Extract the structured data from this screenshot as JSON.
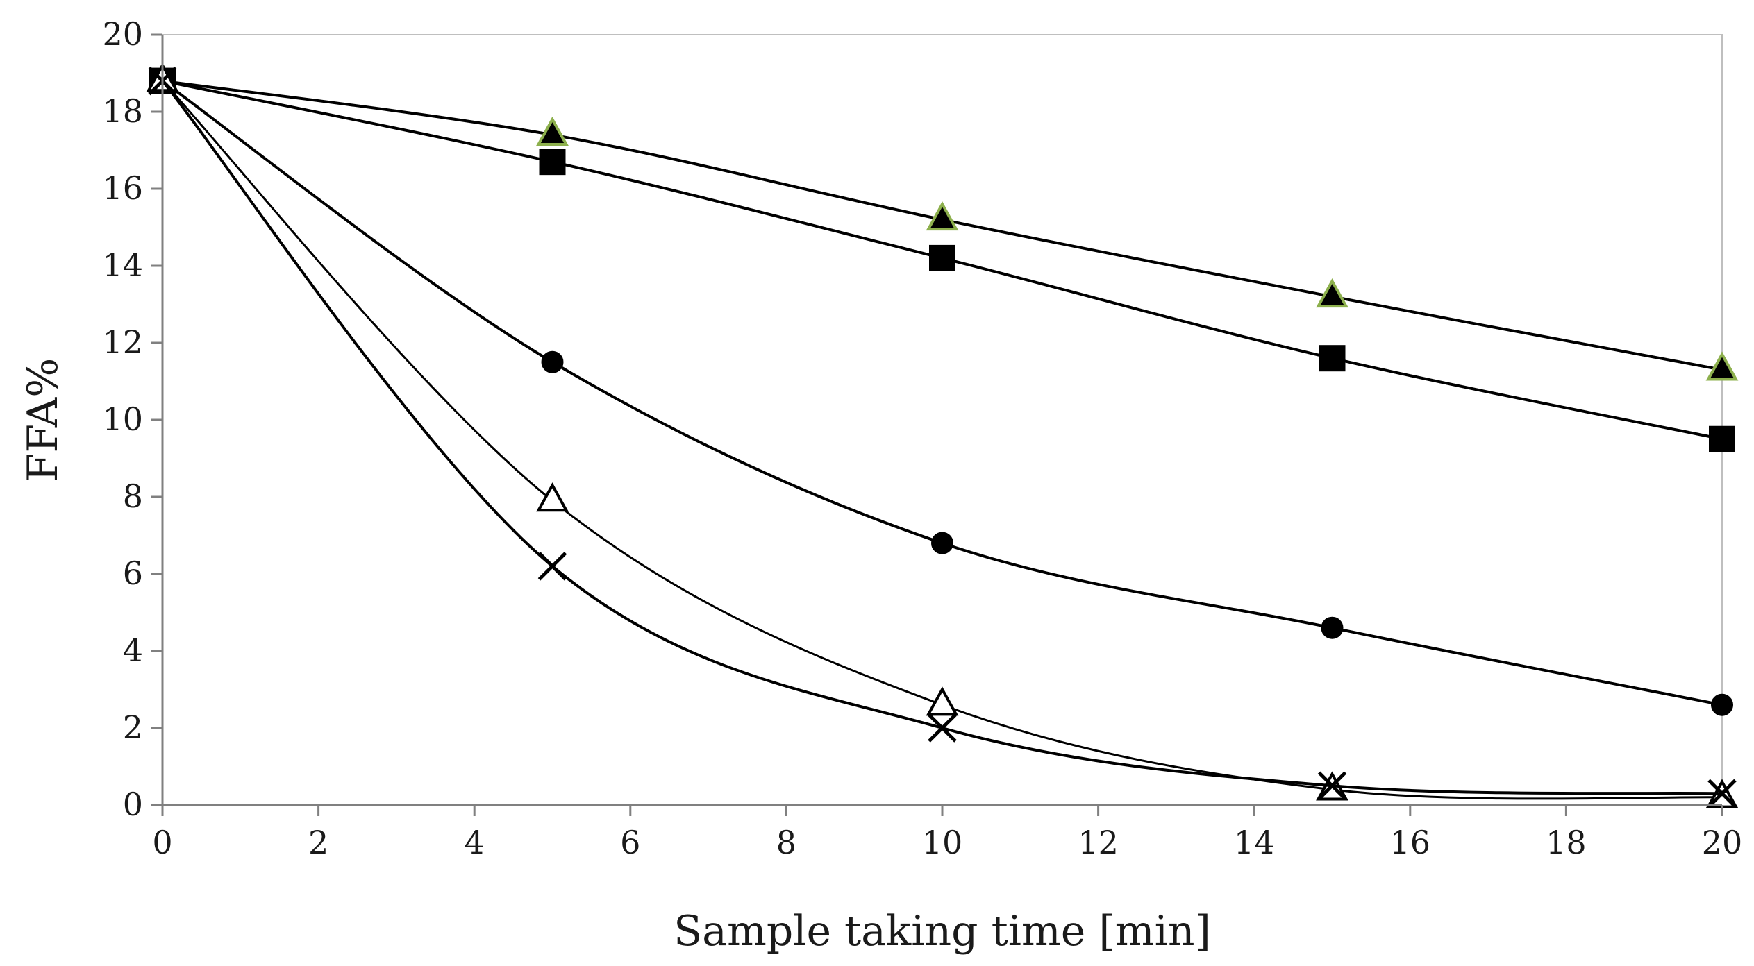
{
  "chart_data": {
    "type": "line",
    "title": "",
    "xlabel": "Sample taking time [min]",
    "ylabel": "FFA%",
    "xlim": [
      0,
      20
    ],
    "ylim": [
      0,
      20
    ],
    "x_ticks": [
      0,
      2,
      4,
      6,
      8,
      10,
      12,
      14,
      16,
      18,
      20
    ],
    "y_ticks": [
      0,
      2,
      4,
      6,
      8,
      10,
      12,
      14,
      16,
      18,
      20
    ],
    "x_tick_labels": [
      "0",
      "2",
      "4",
      "6",
      "8",
      "10",
      "12",
      "14",
      "16",
      "18",
      "20"
    ],
    "y_tick_labels": [
      "0",
      "2",
      "4",
      "6",
      "8",
      "10",
      "12",
      "14",
      "16",
      "18",
      "20"
    ],
    "grid": false,
    "legend": "none",
    "x": [
      0,
      5,
      10,
      15,
      20
    ],
    "series": [
      {
        "name": "filled-triangle",
        "marker": "triangle-filled",
        "marker_fill": "#000000",
        "marker_stroke": "#8db04d",
        "values": [
          18.8,
          17.4,
          15.2,
          13.2,
          11.3
        ]
      },
      {
        "name": "filled-square",
        "marker": "square",
        "marker_fill": "#000000",
        "marker_stroke": "#000000",
        "values": [
          18.8,
          16.7,
          14.2,
          11.6,
          9.5
        ]
      },
      {
        "name": "filled-circle",
        "marker": "circle",
        "marker_fill": "#000000",
        "marker_stroke": "#000000",
        "values": [
          18.8,
          11.5,
          6.8,
          4.6,
          2.6
        ]
      },
      {
        "name": "open-triangle",
        "marker": "triangle-open",
        "marker_fill": "#ffffff",
        "marker_stroke": "#000000",
        "values": [
          18.8,
          7.9,
          2.6,
          0.4,
          0.2
        ]
      },
      {
        "name": "cross",
        "marker": "cross",
        "marker_fill": "none",
        "marker_stroke": "#000000",
        "values": [
          18.8,
          6.2,
          2.0,
          0.5,
          0.3
        ]
      }
    ]
  }
}
